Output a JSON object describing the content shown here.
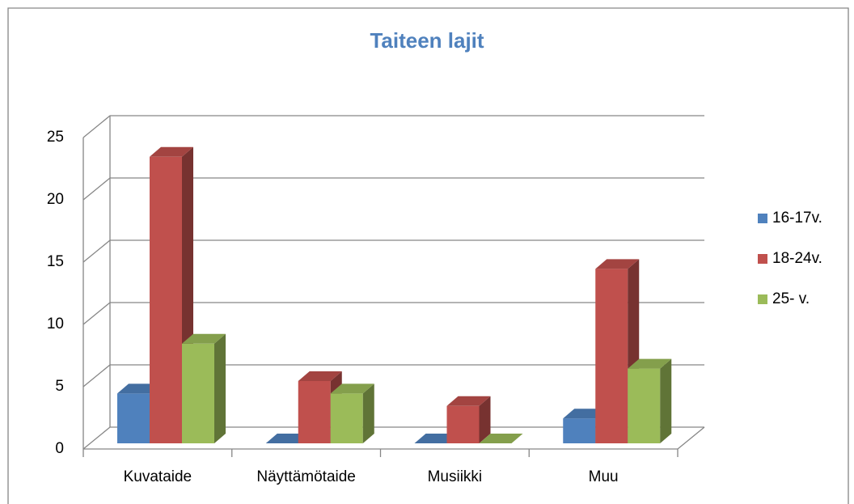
{
  "chart_data": {
    "type": "bar3d",
    "title": "Taiteen lajit",
    "categories": [
      "Kuvataide",
      "Näyttämötaide",
      "Musiikki",
      "Muu"
    ],
    "series": [
      {
        "name": "16-17v.",
        "color": "#4f81bd",
        "values": [
          4,
          0,
          0,
          2
        ]
      },
      {
        "name": "18-24v.",
        "color": "#c0504d",
        "values": [
          23,
          5,
          3,
          14
        ]
      },
      {
        "name": "25- v.",
        "color": "#9bbb59",
        "values": [
          8,
          4,
          0,
          6
        ]
      }
    ],
    "ylim": [
      0,
      25
    ],
    "yticks": [
      0,
      5,
      10,
      15,
      20,
      25
    ],
    "grid": true,
    "legend": "right"
  }
}
